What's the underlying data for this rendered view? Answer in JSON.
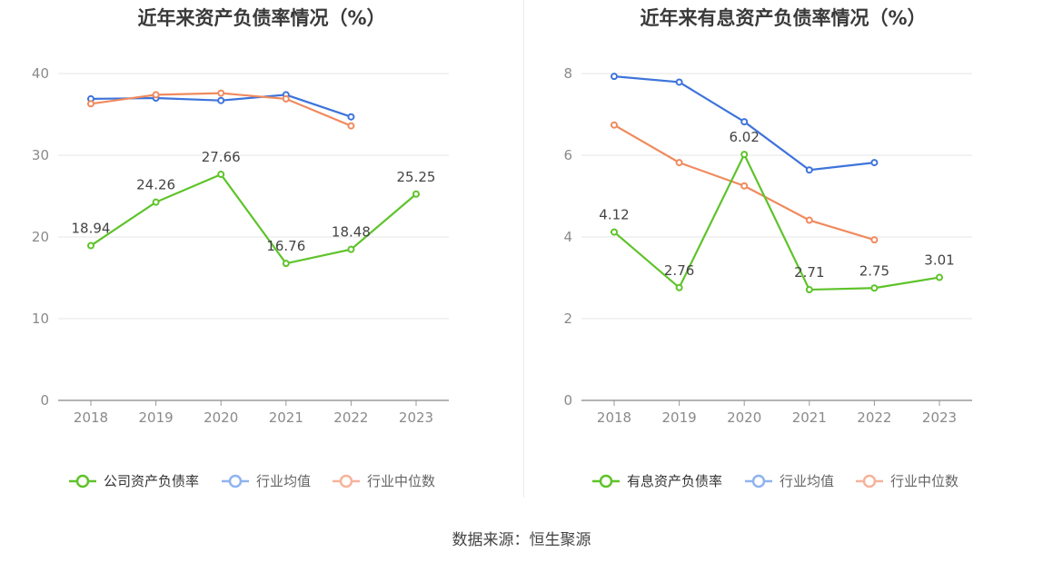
{
  "source_text": "数据来源：恒生聚源",
  "colors": {
    "company": "#5ec32a",
    "avg": "#3d74db",
    "median": "#f08a5d",
    "legend_avg": "#8fb3f0",
    "legend_median": "#f5b39a"
  },
  "chart_data": [
    {
      "type": "line",
      "title": "近年来资产负债率情况（%）",
      "x": [
        "2018",
        "2019",
        "2020",
        "2021",
        "2022",
        "2023"
      ],
      "ylim": [
        0,
        40
      ],
      "yticks": [
        0,
        10,
        20,
        30,
        40
      ],
      "grid": true,
      "legend_position": "bottom",
      "series": [
        {
          "name": "公司资产负债率",
          "key": "company",
          "values": [
            18.94,
            24.26,
            27.66,
            16.76,
            18.48,
            25.25
          ],
          "labels": [
            "18.94",
            "24.26",
            "27.66",
            "16.76",
            "18.48",
            "25.25"
          ]
        },
        {
          "name": "行业均值",
          "key": "avg",
          "values": [
            36.9,
            37.0,
            36.7,
            37.4,
            34.7,
            null
          ]
        },
        {
          "name": "行业中位数",
          "key": "median",
          "values": [
            36.3,
            37.4,
            37.6,
            36.9,
            33.6,
            null
          ]
        }
      ]
    },
    {
      "type": "line",
      "title": "近年来有息资产负债率情况（%）",
      "x": [
        "2018",
        "2019",
        "2020",
        "2021",
        "2022",
        "2023"
      ],
      "ylim": [
        0,
        8
      ],
      "yticks": [
        0,
        2,
        4,
        6,
        8
      ],
      "grid": true,
      "legend_position": "bottom",
      "series": [
        {
          "name": "有息资产负债率",
          "key": "company",
          "values": [
            4.12,
            2.76,
            6.02,
            2.71,
            2.75,
            3.01
          ],
          "labels": [
            "4.12",
            "2.76",
            "6.02",
            "2.71",
            "2.75",
            "3.01"
          ]
        },
        {
          "name": "行业均值",
          "key": "avg",
          "values": [
            7.93,
            7.79,
            6.82,
            5.64,
            5.82,
            null
          ]
        },
        {
          "name": "行业中位数",
          "key": "median",
          "values": [
            6.74,
            5.82,
            5.25,
            4.41,
            3.93,
            null
          ]
        }
      ]
    }
  ]
}
